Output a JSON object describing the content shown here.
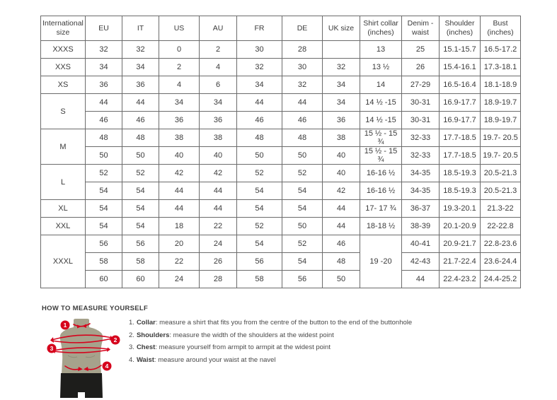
{
  "table": {
    "headers": [
      "International size",
      "EU",
      "IT",
      "US",
      "AU",
      "FR",
      "DE",
      "UK size",
      "Shirt collar (inches)",
      "Denim - waist",
      "Shoulder (inches)",
      "Bust (inches)"
    ],
    "groups": [
      {
        "size": "XXXS",
        "rows": [
          {
            "eu": "32",
            "it": "32",
            "us": "0",
            "au": "2",
            "fr": "30",
            "de": "28",
            "uk": "",
            "collar": "13",
            "waist": "25",
            "shoulder": "15.1-15.7",
            "bust": "16.5-17.2"
          }
        ]
      },
      {
        "size": "XXS",
        "rows": [
          {
            "eu": "34",
            "it": "34",
            "us": "2",
            "au": "4",
            "fr": "32",
            "de": "30",
            "uk": "32",
            "collar": "13 ½",
            "waist": "26",
            "shoulder": "15.4-16.1",
            "bust": "17.3-18.1"
          }
        ]
      },
      {
        "size": "XS",
        "rows": [
          {
            "eu": "36",
            "it": "36",
            "us": "4",
            "au": "6",
            "fr": "34",
            "de": "32",
            "uk": "34",
            "collar": "14",
            "waist": "27-29",
            "shoulder": "16.5-16.4",
            "bust": "18.1-18.9"
          }
        ]
      },
      {
        "size": "S",
        "rows": [
          {
            "eu": "44",
            "it": "44",
            "us": "34",
            "au": "34",
            "fr": "44",
            "de": "44",
            "uk": "34",
            "collar": "14 ½ -15",
            "waist": "30-31",
            "shoulder": "16.9-17.7",
            "bust": "18.9-19.7"
          },
          {
            "eu": "46",
            "it": "46",
            "us": "36",
            "au": "36",
            "fr": "46",
            "de": "46",
            "uk": "36",
            "collar": "14 ½ -15",
            "waist": "30-31",
            "shoulder": "16.9-17.7",
            "bust": "18.9-19.7"
          }
        ]
      },
      {
        "size": "M",
        "rows": [
          {
            "eu": "48",
            "it": "48",
            "us": "38",
            "au": "38",
            "fr": "48",
            "de": "48",
            "uk": "38",
            "collar": "15 ½ - 15 ¾",
            "waist": "32-33",
            "shoulder": "17.7-18.5",
            "bust": "19.7- 20.5"
          },
          {
            "eu": "50",
            "it": "50",
            "us": "40",
            "au": "40",
            "fr": "50",
            "de": "50",
            "uk": "40",
            "collar": "15 ½ - 15 ¾",
            "waist": "32-33",
            "shoulder": "17.7-18.5",
            "bust": "19.7- 20.5"
          }
        ]
      },
      {
        "size": "L",
        "rows": [
          {
            "eu": "52",
            "it": "52",
            "us": "42",
            "au": "42",
            "fr": "52",
            "de": "52",
            "uk": "40",
            "collar": "16-16 ½",
            "waist": "34-35",
            "shoulder": "18.5-19.3",
            "bust": "20.5-21.3"
          },
          {
            "eu": "54",
            "it": "54",
            "us": "44",
            "au": "44",
            "fr": "54",
            "de": "54",
            "uk": "42",
            "collar": "16-16 ½",
            "waist": "34-35",
            "shoulder": "18.5-19.3",
            "bust": "20.5-21.3"
          }
        ]
      },
      {
        "size": "XL",
        "rows": [
          {
            "eu": "54",
            "it": "54",
            "us": "44",
            "au": "44",
            "fr": "54",
            "de": "54",
            "uk": "44",
            "collar": "17- 17 ¾",
            "waist": "36-37",
            "shoulder": "19.3-20.1",
            "bust": "21.3-22"
          }
        ]
      },
      {
        "size": "XXL",
        "rows": [
          {
            "eu": "54",
            "it": "54",
            "us": "18",
            "au": "22",
            "fr": "52",
            "de": "50",
            "uk": "44",
            "collar": "18-18 ½",
            "waist": "38-39",
            "shoulder": "20.1-20.9",
            "bust": "22-22.8"
          }
        ]
      },
      {
        "size": "XXXL",
        "collar_merged": "19 -20",
        "rows": [
          {
            "eu": "56",
            "it": "56",
            "us": "20",
            "au": "24",
            "fr": "54",
            "de": "52",
            "uk": "46",
            "waist": "40-41",
            "shoulder": "20.9-21.7",
            "bust": "22.8-23.6"
          },
          {
            "eu": "58",
            "it": "58",
            "us": "22",
            "au": "26",
            "fr": "56",
            "de": "54",
            "uk": "48",
            "waist": "42-43",
            "shoulder": "21.7-22.4",
            "bust": "23.6-24.4"
          },
          {
            "eu": "60",
            "it": "60",
            "us": "24",
            "au": "28",
            "fr": "58",
            "de": "56",
            "uk": "50",
            "waist": "44",
            "shoulder": "22.4-23.2",
            "bust": "24.4-25.2"
          }
        ]
      }
    ]
  },
  "measure": {
    "title": "HOW TO MEASURE YOURSELF",
    "steps": [
      {
        "num": "1.",
        "label": "Collar",
        "text": ": measure a shirt that fits you from the centre of the button to the end of the buttonhole"
      },
      {
        "num": "2.",
        "label": "Shoulders",
        "text": ": measure the width of the shoulders at the widest point"
      },
      {
        "num": "3.",
        "label": "Chest",
        "text": ": measure yourself from armpit to armpit at the widest point"
      },
      {
        "num": "4.",
        "label": "Waist",
        "text": ": measure around your waist at the navel"
      }
    ],
    "markers": [
      "1",
      "2",
      "3",
      "4"
    ],
    "colors": {
      "accent_red": "#d6021c",
      "mannequin": "#a6a28c",
      "mannequin_shade": "#8f8c77",
      "shorts": "#1d1d1b"
    }
  }
}
